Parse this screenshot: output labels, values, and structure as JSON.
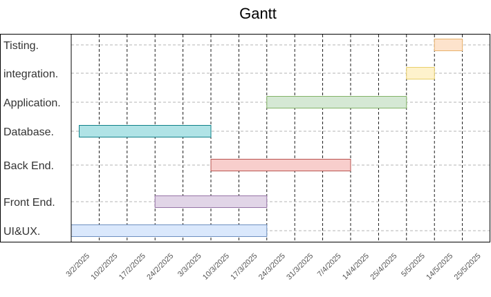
{
  "chart_data": {
    "type": "gantt",
    "title": "Gantt",
    "xlabel": "",
    "ylabel": "",
    "grid": true,
    "x_ticks": [
      "3/2/2025",
      "10/2/2025",
      "17/2/2025",
      "24/2/2025",
      "3/3/2025",
      "10/3/2025",
      "17/3/2025",
      "24/3/2025",
      "31/3/2025",
      "7/4/2025",
      "14/4/2025",
      "25/4/2025",
      "5/5/2025",
      "14/5/2025",
      "25/5/2025"
    ],
    "tasks": [
      {
        "label": "Tisting.",
        "start": "14/5/2025",
        "end": "25/5/2025",
        "color": "#fde3cc",
        "border": "#e8b06a"
      },
      {
        "label": "integration.",
        "start": "5/5/2025",
        "end": "14/5/2025",
        "color": "#fef2cc",
        "border": "#e8cf6a"
      },
      {
        "label": "Application.",
        "start": "24/3/2025",
        "end": "5/5/2025",
        "color": "#d5e8d4",
        "border": "#82b366"
      },
      {
        "label": "Database.",
        "start": "5/2/2025",
        "end": "10/3/2025",
        "color": "#b0e3e6",
        "border": "#0e8088"
      },
      {
        "label": "Back End.",
        "start": "10/3/2025",
        "end": "14/4/2025",
        "color": "#f8cecc",
        "border": "#b85450"
      },
      {
        "label": "Front End.",
        "start": "24/2/2025",
        "end": "24/3/2025",
        "color": "#e1d5e7",
        "border": "#9673a6"
      },
      {
        "label": "UI&UX.",
        "start": "3/2/2025",
        "end": "24/3/2025",
        "color": "#dae8fc",
        "border": "#6c8ebf"
      }
    ]
  }
}
